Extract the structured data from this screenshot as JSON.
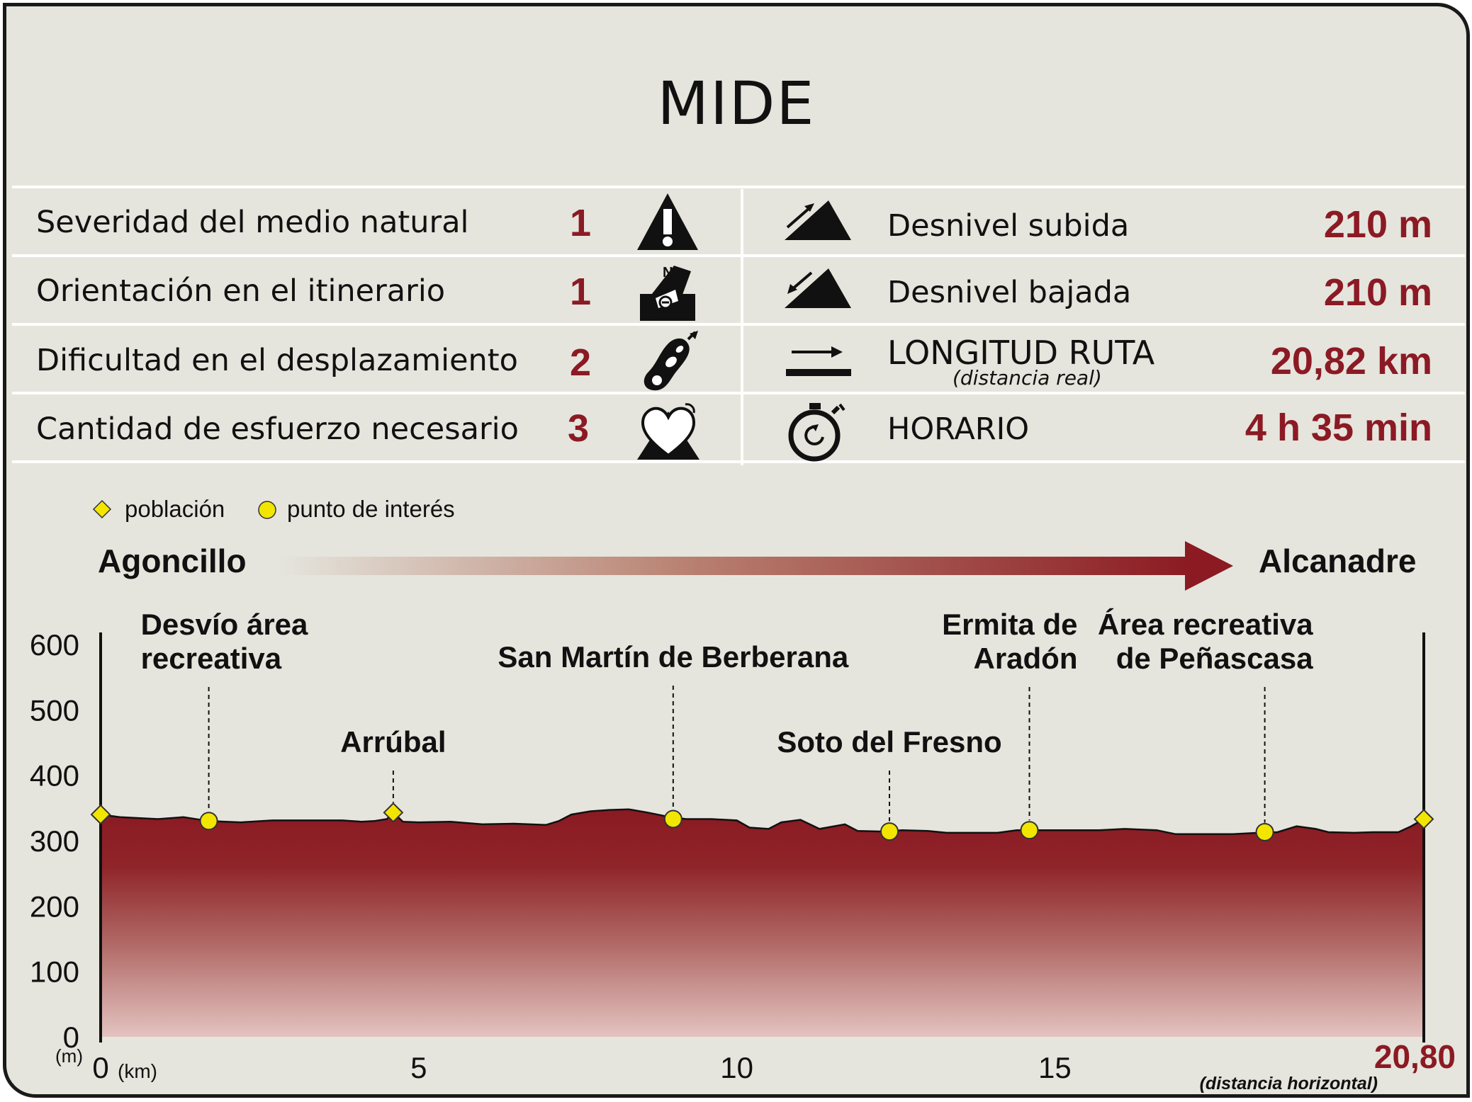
{
  "title": "MIDE",
  "mide": [
    {
      "label": "Severidad del medio natural",
      "value": "1",
      "icon": "warning-triangle-icon"
    },
    {
      "label": "Orientación en el itinerario",
      "value": "1",
      "icon": "orientation-compass-icon"
    },
    {
      "label": "Dificultad en el desplazamiento",
      "value": "2",
      "icon": "footprint-icon"
    },
    {
      "label": "Cantidad de esfuerzo necesario",
      "value": "3",
      "icon": "heart-effort-icon"
    }
  ],
  "route": [
    {
      "label": "Desnivel subida",
      "value": "210 m",
      "icon": "ascent-slope-icon"
    },
    {
      "label": "Desnivel bajada",
      "value": "210 m",
      "icon": "descent-slope-icon"
    },
    {
      "label": "LONGITUD RUTA",
      "sublabel": "(distancia real)",
      "value": "20,82 km",
      "icon": "distance-arrow-icon"
    },
    {
      "label": "HORARIO",
      "value": "4 h 35 min",
      "icon": "stopwatch-icon"
    }
  ],
  "legend": {
    "town": "población",
    "poi": "punto de interés"
  },
  "direction": {
    "start": "Agoncillo",
    "end": "Alcanadre"
  },
  "chart_data": {
    "type": "area",
    "ylabel": "(m)",
    "xlabel": "(km)",
    "xlabel_note": "(distancia horizontal)",
    "x_end_label": "20,80",
    "xlim": [
      0,
      20.8
    ],
    "ylim": [
      0,
      600
    ],
    "yticks": [
      0,
      100,
      200,
      300,
      400,
      500,
      600
    ],
    "xticks": [
      {
        "value": 0,
        "label": "0"
      },
      {
        "value": 5,
        "label": "5"
      },
      {
        "value": 10,
        "label": "10"
      },
      {
        "value": 15,
        "label": "15"
      }
    ],
    "colors": {
      "fill_top": "#8a1a22",
      "fill_bottom": "#e3c3c0",
      "marker": "#f2e600"
    },
    "profile": [
      [
        0,
        340
      ],
      [
        0.3,
        336
      ],
      [
        0.9,
        333
      ],
      [
        1.3,
        336
      ],
      [
        1.7,
        330
      ],
      [
        2.2,
        328
      ],
      [
        2.7,
        331
      ],
      [
        3.3,
        331
      ],
      [
        3.8,
        331
      ],
      [
        4.1,
        329
      ],
      [
        4.3,
        330
      ],
      [
        4.5,
        333
      ],
      [
        4.6,
        343
      ],
      [
        4.75,
        329
      ],
      [
        5,
        328
      ],
      [
        5.5,
        329
      ],
      [
        6.0,
        325
      ],
      [
        6.5,
        326
      ],
      [
        7.0,
        324
      ],
      [
        7.2,
        330
      ],
      [
        7.4,
        340
      ],
      [
        7.7,
        345
      ],
      [
        8.0,
        347
      ],
      [
        8.3,
        348
      ],
      [
        8.6,
        343
      ],
      [
        8.9,
        337
      ],
      [
        9.2,
        333
      ],
      [
        9.6,
        333
      ],
      [
        10.0,
        331
      ],
      [
        10.2,
        320
      ],
      [
        10.5,
        318
      ],
      [
        10.7,
        328
      ],
      [
        11.0,
        332
      ],
      [
        11.3,
        318
      ],
      [
        11.7,
        325
      ],
      [
        11.9,
        315
      ],
      [
        12.3,
        314
      ],
      [
        12.6,
        316
      ],
      [
        13.0,
        315
      ],
      [
        13.3,
        312
      ],
      [
        13.7,
        312
      ],
      [
        14.1,
        312
      ],
      [
        14.4,
        316
      ],
      [
        14.8,
        316
      ],
      [
        15.2,
        316
      ],
      [
        15.7,
        316
      ],
      [
        16.1,
        318
      ],
      [
        16.6,
        316
      ],
      [
        16.9,
        310
      ],
      [
        17.3,
        310
      ],
      [
        17.8,
        310
      ],
      [
        18.2,
        312
      ],
      [
        18.5,
        313
      ],
      [
        18.8,
        322
      ],
      [
        19.1,
        318
      ],
      [
        19.3,
        313
      ],
      [
        19.7,
        312
      ],
      [
        20.0,
        313
      ],
      [
        20.4,
        313
      ],
      [
        20.6,
        322
      ],
      [
        20.8,
        333
      ]
    ],
    "towns": [
      {
        "x": 0,
        "name": "Agoncillo"
      },
      {
        "x": 4.6,
        "name": "Arrúbal"
      },
      {
        "x": 20.8,
        "name": "Alcanadre"
      }
    ],
    "points_of_interest": [
      {
        "x": 1.7,
        "y": 330
      },
      {
        "x": 9.0,
        "y": 333
      },
      {
        "x": 12.4,
        "y": 314
      },
      {
        "x": 14.6,
        "y": 316
      },
      {
        "x": 18.3,
        "y": 313
      }
    ],
    "annotations": [
      {
        "lines": [
          "Desvío área",
          "recreativa"
        ],
        "x": 1.7,
        "align": "start"
      },
      {
        "lines": [
          "Arrúbal"
        ],
        "x": 4.6,
        "align": "middle"
      },
      {
        "lines": [
          "San Martín de Berberana"
        ],
        "x": 9.0,
        "align": "middle"
      },
      {
        "lines": [
          "Soto del Fresno"
        ],
        "x": 12.4,
        "align": "middle"
      },
      {
        "lines": [
          "Ermita de",
          "Aradón"
        ],
        "x": 14.6,
        "align": "end"
      },
      {
        "lines": [
          "Área recreativa",
          "de Peñascasa"
        ],
        "x": 18.3,
        "align": "end"
      }
    ]
  }
}
